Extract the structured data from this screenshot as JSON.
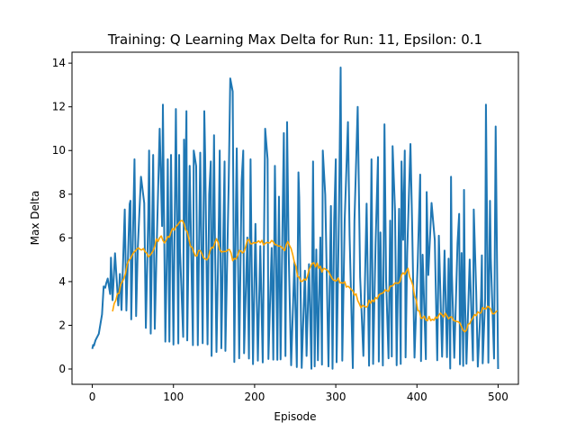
{
  "chart_data": {
    "type": "line",
    "title": "Training: Q Learning Max Delta for Run: 11, Epsilon: 0.1",
    "xlabel": "Episode",
    "ylabel": "Max Delta",
    "xlim": [
      -25,
      525
    ],
    "ylim": [
      -0.7,
      14.5
    ],
    "x_ticks": [
      0,
      100,
      200,
      300,
      400,
      500
    ],
    "y_ticks": [
      0,
      2,
      4,
      6,
      8,
      10,
      12,
      14
    ],
    "grid": false,
    "legend": "none",
    "series": [
      {
        "color": "#1f77b4",
        "style": "raw",
        "anchors": [
          [
            0,
            1.0
          ],
          [
            5,
            1.3
          ],
          [
            10,
            2.2
          ],
          [
            15,
            3.8
          ],
          [
            20,
            4.2
          ],
          [
            25,
            5.2
          ],
          [
            30,
            5.0
          ],
          [
            35,
            6.5
          ],
          [
            40,
            7.0
          ],
          [
            50,
            7.5
          ],
          [
            60,
            8.2
          ],
          [
            70,
            8.5
          ],
          [
            80,
            9.0
          ],
          [
            90,
            9.8
          ],
          [
            100,
            9.2
          ],
          [
            110,
            9.5
          ],
          [
            120,
            9.8
          ],
          [
            130,
            9.5
          ],
          [
            140,
            9.6
          ],
          [
            150,
            9.0
          ],
          [
            160,
            8.8
          ],
          [
            170,
            9.2
          ],
          [
            180,
            8.8
          ],
          [
            190,
            8.0
          ],
          [
            200,
            8.3
          ],
          [
            220,
            8.2
          ],
          [
            240,
            8.0
          ],
          [
            260,
            7.8
          ],
          [
            280,
            7.6
          ],
          [
            300,
            7.8
          ],
          [
            320,
            7.6
          ],
          [
            340,
            7.4
          ],
          [
            360,
            7.2
          ],
          [
            380,
            7.0
          ],
          [
            400,
            6.5
          ],
          [
            420,
            6.2
          ],
          [
            440,
            6.0
          ],
          [
            460,
            5.6
          ],
          [
            480,
            5.5
          ],
          [
            500,
            5.0
          ]
        ],
        "floor_anchors": [
          [
            20,
            3.0
          ],
          [
            30,
            2.5
          ],
          [
            50,
            2.0
          ],
          [
            70,
            1.5
          ],
          [
            100,
            1.0
          ],
          [
            130,
            0.7
          ],
          [
            160,
            0.4
          ],
          [
            185,
            0.2
          ],
          [
            200,
            0.0
          ],
          [
            500,
            0.0
          ]
        ],
        "spikes": [
          [
            1,
            1.1
          ],
          [
            17,
            3.9
          ],
          [
            23,
            5.1
          ],
          [
            28,
            5.3
          ],
          [
            40,
            7.3
          ],
          [
            47,
            7.7
          ],
          [
            52,
            9.6
          ],
          [
            60,
            8.8
          ],
          [
            70,
            10.0
          ],
          [
            75,
            9.8
          ],
          [
            83,
            11.0
          ],
          [
            87,
            12.1
          ],
          [
            93,
            9.6
          ],
          [
            97,
            9.8
          ],
          [
            103,
            11.9
          ],
          [
            107,
            9.8
          ],
          [
            113,
            10.5
          ],
          [
            116,
            11.8
          ],
          [
            120,
            9.3
          ],
          [
            125,
            10.0
          ],
          [
            133,
            9.9
          ],
          [
            138,
            11.8
          ],
          [
            146,
            9.5
          ],
          [
            150,
            10.7
          ],
          [
            157,
            10.0
          ],
          [
            163,
            9.5
          ],
          [
            170,
            13.3
          ],
          [
            173,
            12.7
          ],
          [
            178,
            10.1
          ],
          [
            186,
            10.0
          ],
          [
            195,
            9.6
          ],
          [
            213,
            11.0
          ],
          [
            216,
            9.6
          ],
          [
            225,
            9.3
          ],
          [
            236,
            10.8
          ],
          [
            240,
            11.3
          ],
          [
            254,
            9.0
          ],
          [
            272,
            9.5
          ],
          [
            284,
            10.0
          ],
          [
            300,
            9.6
          ],
          [
            306,
            13.8
          ],
          [
            315,
            11.3
          ],
          [
            327,
            12.0
          ],
          [
            344,
            9.6
          ],
          [
            352,
            9.7
          ],
          [
            360,
            11.2
          ],
          [
            370,
            10.2
          ],
          [
            381,
            9.5
          ],
          [
            385,
            10.0
          ],
          [
            392,
            10.3
          ],
          [
            404,
            8.9
          ],
          [
            412,
            8.1
          ],
          [
            418,
            7.6
          ],
          [
            442,
            8.8
          ],
          [
            452,
            7.1
          ],
          [
            458,
            8.2
          ],
          [
            470,
            7.3
          ],
          [
            480,
            5.2
          ],
          [
            485,
            12.1
          ],
          [
            490,
            7.7
          ],
          [
            497,
            11.1
          ],
          [
            500,
            0.0
          ]
        ],
        "spacing": [
          2,
          3,
          4
        ],
        "seed": 11
      },
      {
        "color": "#ffa500",
        "style": "smooth",
        "x_start": 25,
        "x_end": 500,
        "step": 2,
        "anchors": [
          [
            25,
            2.7
          ],
          [
            28,
            3.0
          ],
          [
            35,
            3.8
          ],
          [
            42,
            4.6
          ],
          [
            50,
            5.3
          ],
          [
            58,
            5.5
          ],
          [
            65,
            5.4
          ],
          [
            72,
            5.1
          ],
          [
            78,
            5.8
          ],
          [
            85,
            6.1
          ],
          [
            90,
            5.8
          ],
          [
            96,
            6.2
          ],
          [
            103,
            6.5
          ],
          [
            108,
            6.8
          ],
          [
            113,
            6.7
          ],
          [
            117,
            6.2
          ],
          [
            122,
            5.5
          ],
          [
            128,
            5.2
          ],
          [
            133,
            5.4
          ],
          [
            140,
            5.0
          ],
          [
            147,
            5.5
          ],
          [
            153,
            5.9
          ],
          [
            158,
            5.4
          ],
          [
            163,
            5.3
          ],
          [
            168,
            5.5
          ],
          [
            174,
            4.9
          ],
          [
            180,
            5.3
          ],
          [
            186,
            5.4
          ],
          [
            192,
            5.9
          ],
          [
            198,
            5.7
          ],
          [
            205,
            5.9
          ],
          [
            213,
            5.7
          ],
          [
            222,
            5.9
          ],
          [
            230,
            5.6
          ],
          [
            236,
            5.4
          ],
          [
            242,
            5.9
          ],
          [
            248,
            5.0
          ],
          [
            254,
            4.2
          ],
          [
            259,
            3.9
          ],
          [
            264,
            4.2
          ],
          [
            270,
            4.7
          ],
          [
            276,
            4.8
          ],
          [
            283,
            4.5
          ],
          [
            290,
            4.5
          ],
          [
            296,
            4.2
          ],
          [
            303,
            4.1
          ],
          [
            310,
            3.9
          ],
          [
            318,
            3.7
          ],
          [
            325,
            3.4
          ],
          [
            330,
            2.9
          ],
          [
            336,
            2.8
          ],
          [
            342,
            3.1
          ],
          [
            350,
            3.2
          ],
          [
            356,
            3.5
          ],
          [
            362,
            3.6
          ],
          [
            370,
            3.8
          ],
          [
            378,
            4.0
          ],
          [
            384,
            4.4
          ],
          [
            389,
            4.6
          ],
          [
            394,
            3.9
          ],
          [
            398,
            3.2
          ],
          [
            404,
            2.4
          ],
          [
            410,
            2.3
          ],
          [
            418,
            2.3
          ],
          [
            425,
            2.4
          ],
          [
            432,
            2.5
          ],
          [
            440,
            2.4
          ],
          [
            448,
            2.2
          ],
          [
            455,
            1.9
          ],
          [
            460,
            1.8
          ],
          [
            466,
            2.1
          ],
          [
            472,
            2.5
          ],
          [
            480,
            2.7
          ],
          [
            486,
            2.8
          ],
          [
            492,
            2.7
          ],
          [
            496,
            2.5
          ],
          [
            500,
            2.6
          ]
        ],
        "jitter": 0.12,
        "seed": 7
      }
    ]
  }
}
